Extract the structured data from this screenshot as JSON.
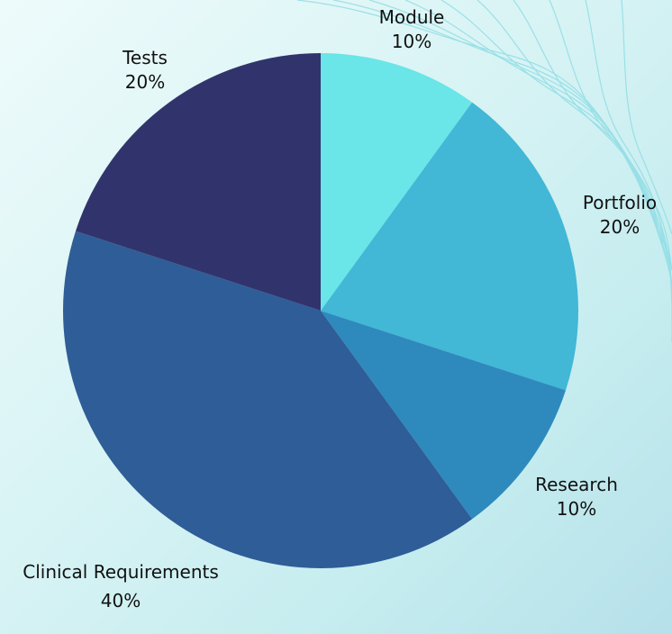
{
  "chart_data": {
    "type": "pie",
    "title": "",
    "start_angle_deg": 0,
    "direction": "clockwise",
    "slices": [
      {
        "label": "Module",
        "value": 10,
        "value_label": "10%",
        "color": "#6ae5e8"
      },
      {
        "label": "Portfolio",
        "value": 20,
        "value_label": "20%",
        "color": "#42b7d6"
      },
      {
        "label": "Research",
        "value": 10,
        "value_label": "10%",
        "color": "#2e8abc"
      },
      {
        "label": "Clinical Requirements",
        "value": 40,
        "value_label": "40%",
        "color": "#2f5d97"
      },
      {
        "label": "Tests",
        "value": 20,
        "value_label": "20%",
        "color": "#31346c"
      }
    ]
  }
}
